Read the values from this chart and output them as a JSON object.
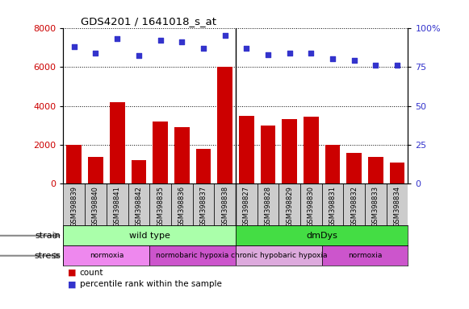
{
  "title": "GDS4201 / 1641018_s_at",
  "samples": [
    "GSM398839",
    "GSM398840",
    "GSM398841",
    "GSM398842",
    "GSM398835",
    "GSM398836",
    "GSM398837",
    "GSM398838",
    "GSM398827",
    "GSM398828",
    "GSM398829",
    "GSM398830",
    "GSM398831",
    "GSM398832",
    "GSM398833",
    "GSM398834"
  ],
  "counts": [
    2000,
    1400,
    4200,
    1200,
    3200,
    2900,
    1800,
    6000,
    3500,
    3000,
    3300,
    3450,
    2000,
    1600,
    1400,
    1100
  ],
  "percentile_ranks": [
    88,
    84,
    93,
    82,
    92,
    91,
    87,
    95,
    87,
    83,
    84,
    84,
    80,
    79,
    76,
    76
  ],
  "bar_color": "#cc0000",
  "dot_color": "#3333cc",
  "left_yaxis_color": "#cc0000",
  "right_yaxis_color": "#3333cc",
  "left_ylim": [
    0,
    8000
  ],
  "right_ylim": [
    0,
    100
  ],
  "left_yticks": [
    0,
    2000,
    4000,
    6000,
    8000
  ],
  "right_yticks": [
    0,
    25,
    50,
    75,
    100
  ],
  "right_yticklabels": [
    "0",
    "25",
    "50",
    "75",
    "100%"
  ],
  "strain_groups": [
    {
      "label": "wild type",
      "start": 0,
      "end": 8,
      "color": "#aaffaa"
    },
    {
      "label": "dmDys",
      "start": 8,
      "end": 16,
      "color": "#44dd44"
    }
  ],
  "stress_groups": [
    {
      "label": "normoxia",
      "start": 0,
      "end": 4,
      "color": "#ee88ee"
    },
    {
      "label": "normobaric hypoxia",
      "start": 4,
      "end": 8,
      "color": "#cc55cc"
    },
    {
      "label": "chronic hypobaric hypoxia",
      "start": 8,
      "end": 12,
      "color": "#ddaadd"
    },
    {
      "label": "normoxia",
      "start": 12,
      "end": 16,
      "color": "#cc55cc"
    }
  ],
  "background_color": "#ffffff",
  "plot_bg_color": "#ffffff",
  "tick_label_bg": "#cccccc",
  "grid_color": "#000000",
  "legend_count_label": "count",
  "legend_pct_label": "percentile rank within the sample"
}
